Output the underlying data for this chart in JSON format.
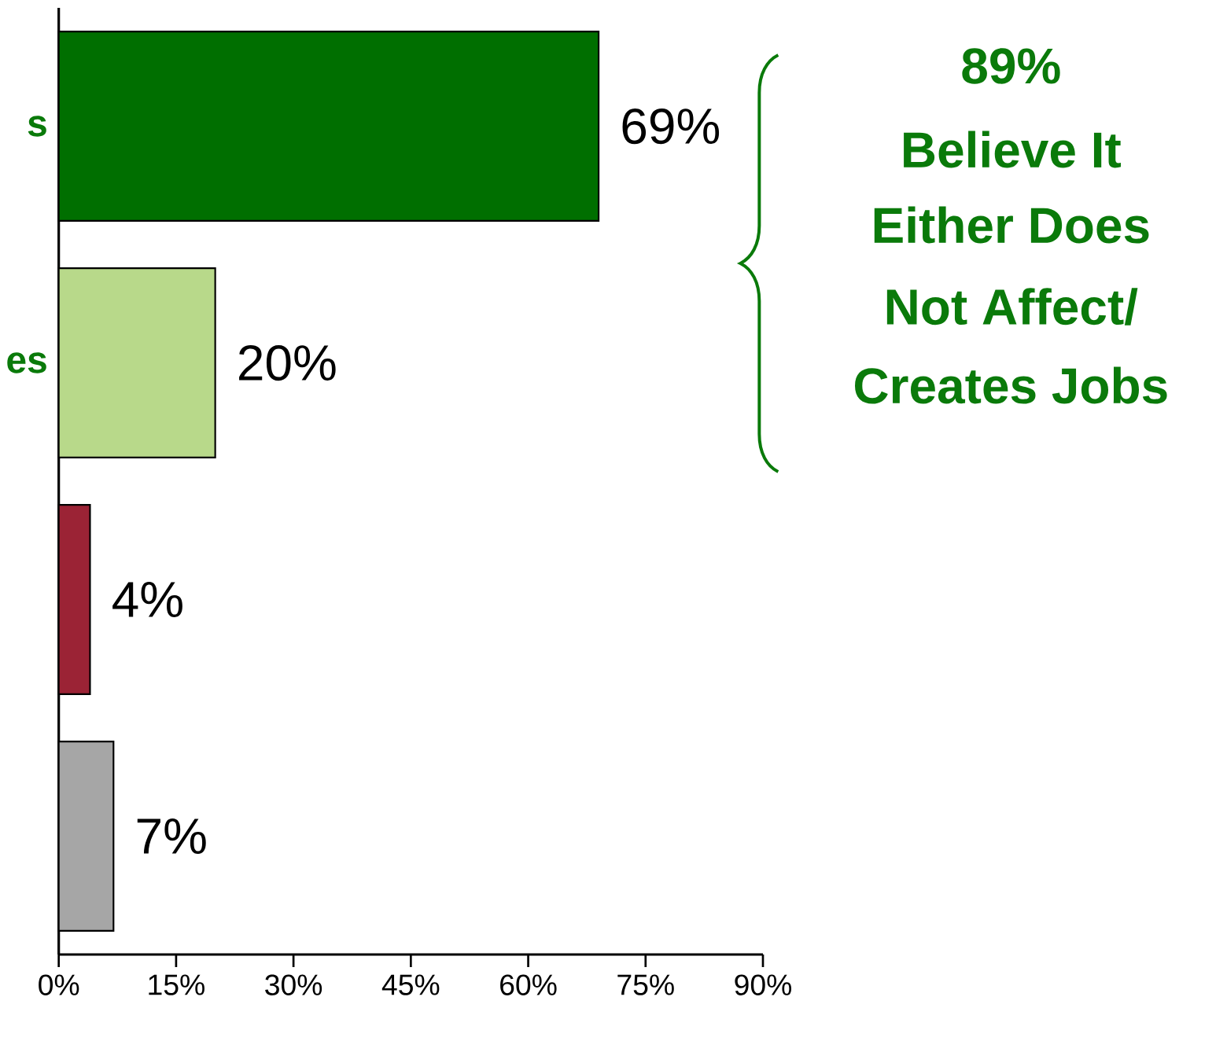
{
  "chart_data": {
    "type": "bar",
    "orientation": "horizontal",
    "categories": [
      "s",
      "es",
      null,
      null
    ],
    "values": [
      69,
      20,
      4,
      7
    ],
    "colors": [
      "#006f00",
      "#b8d98a",
      "#9b2335",
      "#a6a6a6"
    ],
    "value_labels": [
      "69%",
      "20%",
      "4%",
      "7%"
    ],
    "xlim": [
      0,
      90
    ],
    "xticks": [
      {
        "value": 0,
        "label": "0%"
      },
      {
        "value": 15,
        "label": "15%"
      },
      {
        "value": 30,
        "label": "30%"
      },
      {
        "value": 45,
        "label": "45%"
      },
      {
        "value": 60,
        "label": "60%"
      },
      {
        "value": 75,
        "label": "75%"
      },
      {
        "value": 90,
        "label": "90%"
      }
    ],
    "annotations": [
      "89%",
      "Believe It",
      "Either Does",
      "Not Affect/",
      "Creates Jobs"
    ]
  }
}
